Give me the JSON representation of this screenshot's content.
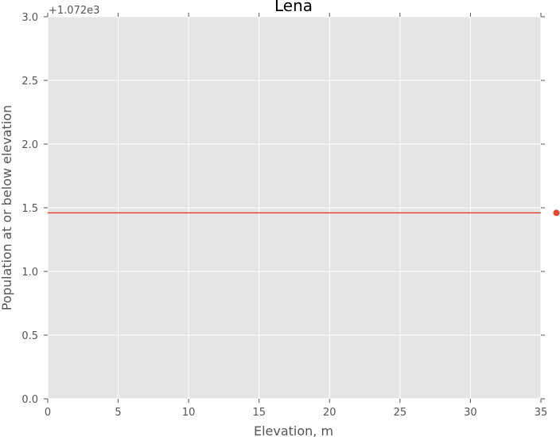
{
  "chart_data": {
    "type": "line",
    "title": "Lena",
    "xlabel": "Elevation, m",
    "ylabel": "Population at or below elevation",
    "xlim": [
      0,
      35
    ],
    "ylim": [
      0.0,
      3.0
    ],
    "y_offset_label": "+1.072e3",
    "x_ticks": [
      0,
      5,
      10,
      15,
      20,
      25,
      30,
      35
    ],
    "x_tick_labels": [
      "0",
      "5",
      "10",
      "15",
      "20",
      "25",
      "30",
      "35"
    ],
    "y_ticks": [
      0.0,
      0.5,
      1.0,
      1.5,
      2.0,
      2.5,
      3.0
    ],
    "y_tick_labels": [
      "0.0",
      "0.5",
      "1.0",
      "1.5",
      "2.0",
      "2.5",
      "3.0"
    ],
    "grid": true,
    "series": [
      {
        "type": "line",
        "x": [
          0,
          35
        ],
        "y": [
          1.46,
          1.46
        ],
        "color": "#e24a33"
      },
      {
        "type": "scatter",
        "x": [
          36.1
        ],
        "y": [
          1.46
        ],
        "color": "#e24a33"
      }
    ],
    "background_color": "#e5e5e5",
    "grid_color": "#ffffff"
  }
}
